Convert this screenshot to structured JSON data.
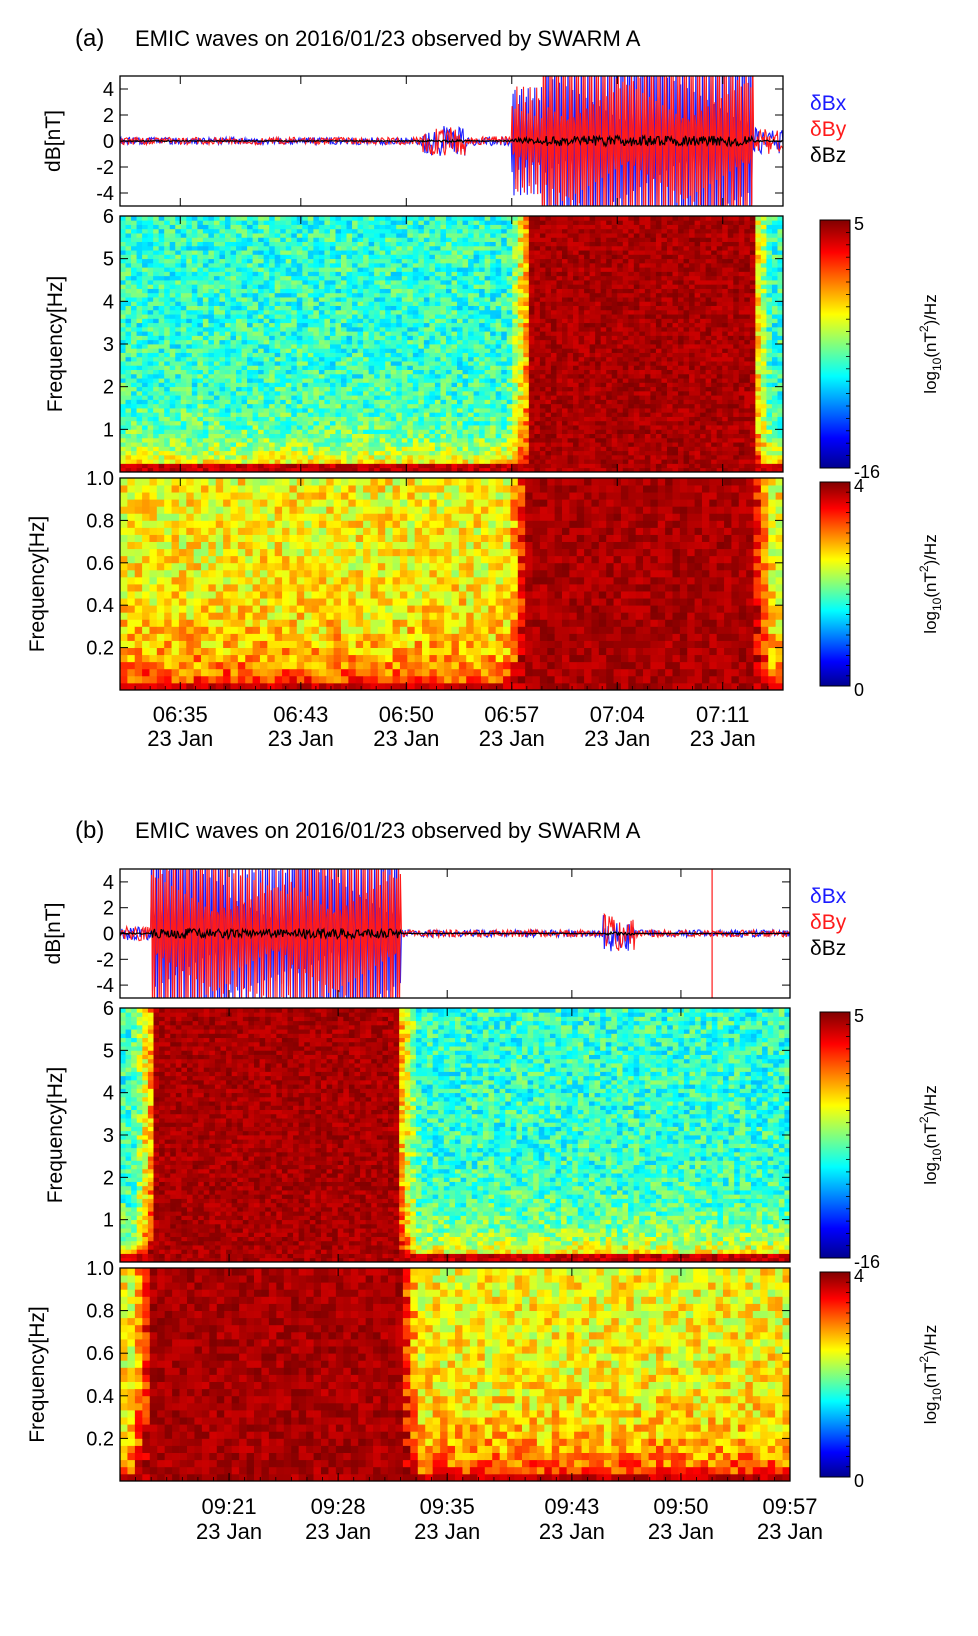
{
  "figure": {
    "panels": [
      {
        "label": "(a)",
        "title": "EMIC waves on 2016/01/23 observed by SWARM A",
        "legend": [
          "δBx",
          "δBy",
          "δBz"
        ],
        "colorbar_high": {
          "max": "5",
          "min": "-16",
          "unit_prefix": "log",
          "unit_sub": "10",
          "unit_main": "(nT",
          "unit_sup": "2",
          "unit_suffix": ")/Hz"
        },
        "colorbar_low": {
          "max": "4",
          "min": "0",
          "unit_prefix": "log",
          "unit_sub": "10",
          "unit_main": "(nT",
          "unit_sup": "2",
          "unit_suffix": ")/Hz"
        },
        "time_ticks": [
          {
            "time": "06:35",
            "date": "23 Jan"
          },
          {
            "time": "06:43",
            "date": "23 Jan"
          },
          {
            "time": "06:50",
            "date": "23 Jan"
          },
          {
            "time": "06:57",
            "date": "23 Jan"
          },
          {
            "time": "07:04",
            "date": "23 Jan"
          },
          {
            "time": "07:11",
            "date": "23 Jan"
          }
        ]
      },
      {
        "label": "(b)",
        "title": "EMIC waves on 2016/01/23 observed by SWARM A",
        "legend": [
          "δBx",
          "δBy",
          "δBz"
        ],
        "colorbar_high": {
          "max": "5",
          "min": "-16",
          "unit_prefix": "log",
          "unit_sub": "10",
          "unit_main": "(nT",
          "unit_sup": "2",
          "unit_suffix": ")/Hz"
        },
        "colorbar_low": {
          "max": "4",
          "min": "0",
          "unit_prefix": "log",
          "unit_sub": "10",
          "unit_main": "(nT",
          "unit_sup": "2",
          "unit_suffix": ")/Hz"
        },
        "time_ticks": [
          {
            "time": "09:21",
            "date": "23 Jan"
          },
          {
            "time": "09:28",
            "date": "23 Jan"
          },
          {
            "time": "09:35",
            "date": "23 Jan"
          },
          {
            "time": "09:43",
            "date": "23 Jan"
          },
          {
            "time": "09:50",
            "date": "23 Jan"
          },
          {
            "time": "09:57",
            "date": "23 Jan"
          }
        ]
      }
    ],
    "colors": {
      "bx": "#1a1aff",
      "by": "#ff1a1a",
      "bz": "#000000"
    }
  },
  "chart_data": [
    {
      "type": "line",
      "panel": "(a)",
      "ylabel": "dB[nT]",
      "ylim": [
        -5,
        5
      ],
      "yticks": [
        -4,
        -2,
        0,
        2,
        4
      ],
      "xlim": [
        "06:31",
        "07:15"
      ],
      "series": [
        {
          "name": "δBx",
          "color": "#1a1aff"
        },
        {
          "name": "δBy",
          "color": "#ff1a1a"
        },
        {
          "name": "δBz",
          "color": "#000000"
        }
      ],
      "amplitude_envelope": [
        {
          "from": "06:31",
          "to": "06:51",
          "max_abs_nT": 0.4
        },
        {
          "from": "06:51",
          "to": "06:54",
          "max_abs_nT": 1.2
        },
        {
          "from": "06:54",
          "to": "06:57",
          "max_abs_nT": 0.5
        },
        {
          "from": "06:57",
          "to": "06:59",
          "max_abs_nT": 3
        },
        {
          "from": "06:59",
          "to": "07:13",
          "max_abs_nT": 5
        },
        {
          "from": "07:13",
          "to": "07:15",
          "max_abs_nT": 1
        }
      ]
    },
    {
      "type": "heatmap",
      "panel": "(a)",
      "ylabel": "Frequency[Hz]",
      "ylim": [
        0,
        6
      ],
      "yticks": [
        1,
        2,
        3,
        4,
        5,
        6
      ],
      "color_range": [
        -16,
        5
      ],
      "strong_wave_interval": [
        "06:58",
        "07:13"
      ]
    },
    {
      "type": "heatmap",
      "panel": "(a)",
      "ylabel": "Frequency[Hz]",
      "ylim": [
        0,
        1.0
      ],
      "yticks": [
        0.2,
        0.4,
        0.6,
        0.8,
        1.0
      ],
      "color_range": [
        0,
        4
      ],
      "strong_wave_interval": [
        "06:58",
        "07:13"
      ]
    },
    {
      "type": "line",
      "panel": "(b)",
      "ylabel": "dB[nT]",
      "ylim": [
        -5,
        5
      ],
      "yticks": [
        -4,
        -2,
        0,
        2,
        4
      ],
      "xlim": [
        "09:14",
        "09:57"
      ],
      "series": [
        {
          "name": "δBx",
          "color": "#1a1aff"
        },
        {
          "name": "δBy",
          "color": "#ff1a1a"
        },
        {
          "name": "δBz",
          "color": "#000000"
        }
      ],
      "amplitude_envelope": [
        {
          "from": "09:14",
          "to": "09:16",
          "max_abs_nT": 0.8
        },
        {
          "from": "09:16",
          "to": "09:21",
          "max_abs_nT": 5
        },
        {
          "from": "09:21",
          "to": "09:25",
          "max_abs_nT": 4
        },
        {
          "from": "09:25",
          "to": "09:32",
          "max_abs_nT": 5
        },
        {
          "from": "09:32",
          "to": "09:45",
          "max_abs_nT": 0.4
        },
        {
          "from": "09:45",
          "to": "09:47",
          "max_abs_nT": 1.5
        },
        {
          "from": "09:47",
          "to": "09:57",
          "max_abs_nT": 0.4
        }
      ],
      "spike_time": "09:52"
    },
    {
      "type": "heatmap",
      "panel": "(b)",
      "ylabel": "Frequency[Hz]",
      "ylim": [
        0,
        6
      ],
      "yticks": [
        1,
        2,
        3,
        4,
        5,
        6
      ],
      "color_range": [
        -16,
        5
      ],
      "strong_wave_interval": [
        "09:16",
        "09:32"
      ]
    },
    {
      "type": "heatmap",
      "panel": "(b)",
      "ylabel": "Frequency[Hz]",
      "ylim": [
        0,
        1.0
      ],
      "yticks": [
        0.2,
        0.4,
        0.6,
        0.8,
        1.0
      ],
      "color_range": [
        0,
        4
      ],
      "strong_wave_interval": [
        "09:16",
        "09:32"
      ]
    }
  ]
}
